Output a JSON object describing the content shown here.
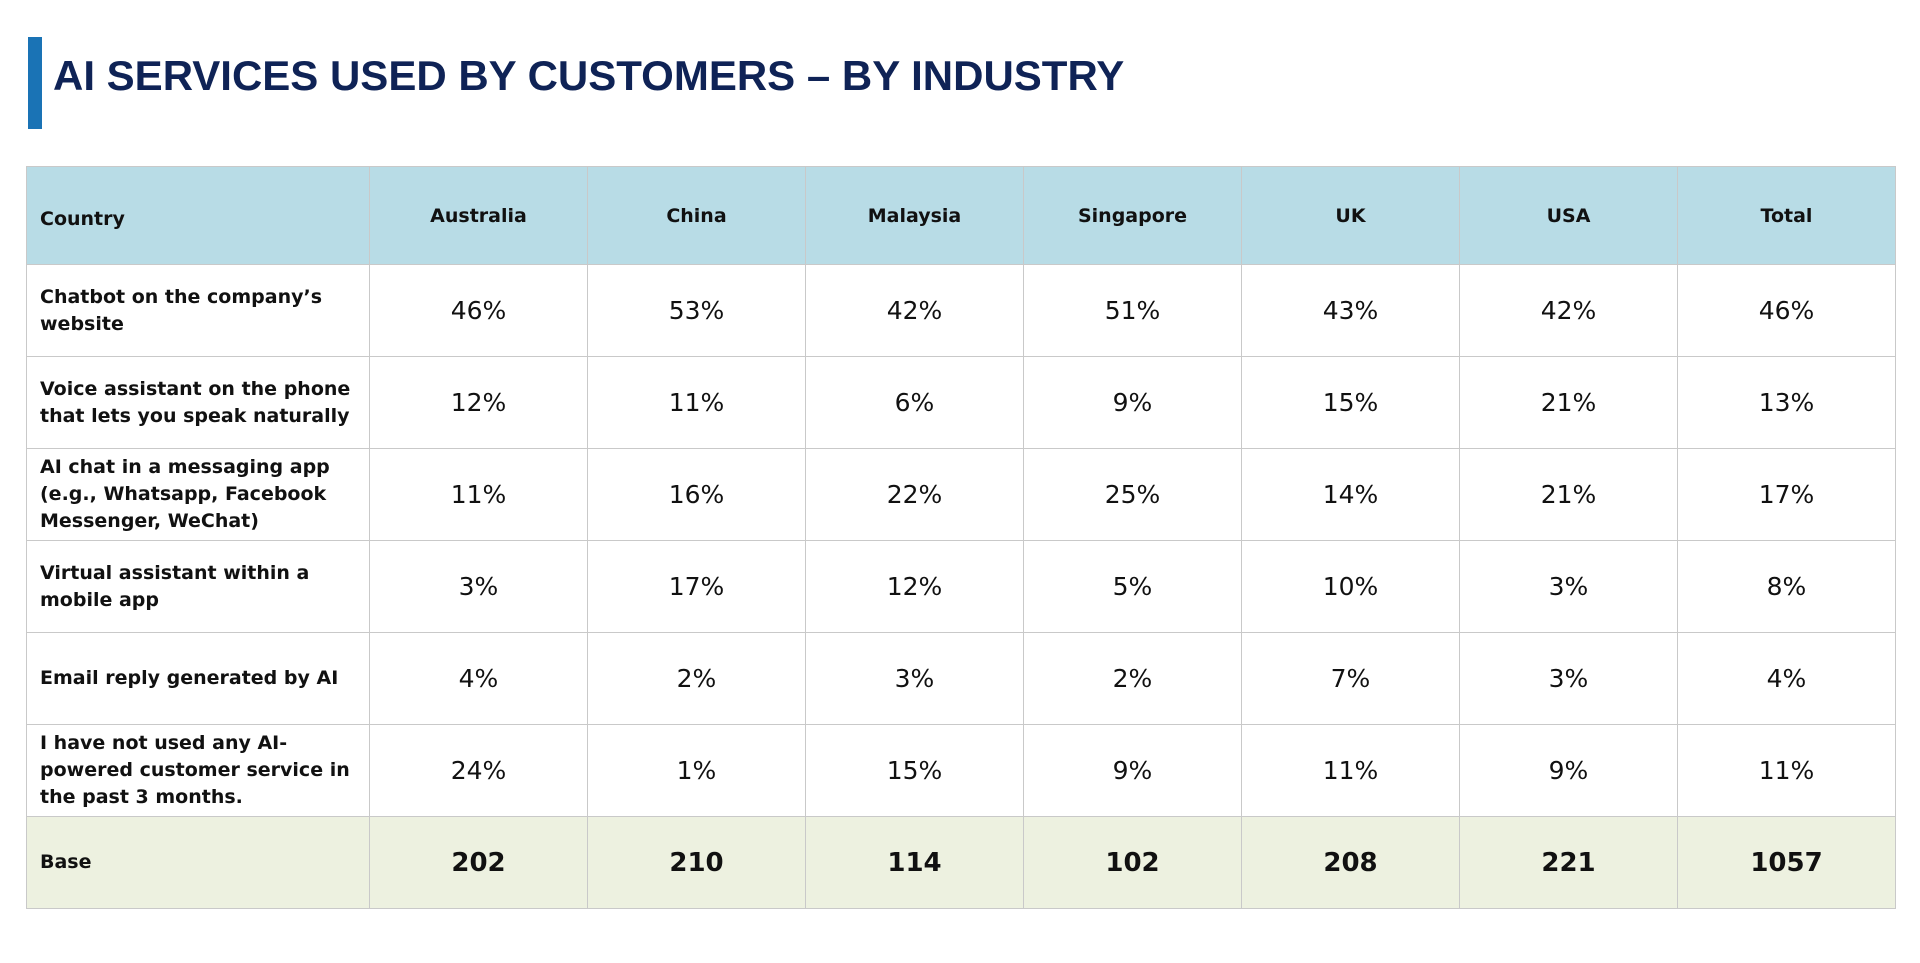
{
  "title": "AI SERVICES USED BY CUSTOMERS – BY INDUSTRY",
  "colors": {
    "title": "#0f2356",
    "accent_bar": "#1a73b5",
    "header_bg": "#b8dce6",
    "base_row_bg": "#edf1e0"
  },
  "table": {
    "headers": [
      "Country",
      "Australia",
      "China",
      "Malaysia",
      "Singapore",
      "UK",
      "USA",
      "Total"
    ],
    "rows": [
      {
        "label": "Chatbot on the company’s website",
        "values": [
          "46%",
          "53%",
          "42%",
          "51%",
          "43%",
          "42%",
          "46%"
        ]
      },
      {
        "label": "Voice assistant on the phone that lets you speak naturally",
        "values": [
          "12%",
          "11%",
          "6%",
          "9%",
          "15%",
          "21%",
          "13%"
        ]
      },
      {
        "label": "AI chat in a messaging app (e.g., Whatsapp, Facebook Messenger, WeChat)",
        "values": [
          "11%",
          "16%",
          "22%",
          "25%",
          "14%",
          "21%",
          "17%"
        ]
      },
      {
        "label": "Virtual assistant within a mobile app",
        "values": [
          "3%",
          "17%",
          "12%",
          "5%",
          "10%",
          "3%",
          "8%"
        ]
      },
      {
        "label": "Email reply generated by AI",
        "values": [
          "4%",
          "2%",
          "3%",
          "2%",
          "7%",
          "3%",
          "4%"
        ]
      },
      {
        "label": "I have not used any AI-powered customer service in the past 3 months.",
        "values": [
          "24%",
          "1%",
          "15%",
          "9%",
          "11%",
          "9%",
          "11%"
        ]
      }
    ],
    "base": {
      "label": "Base",
      "values": [
        "202",
        "210",
        "114",
        "102",
        "208",
        "221",
        "1057"
      ]
    }
  }
}
